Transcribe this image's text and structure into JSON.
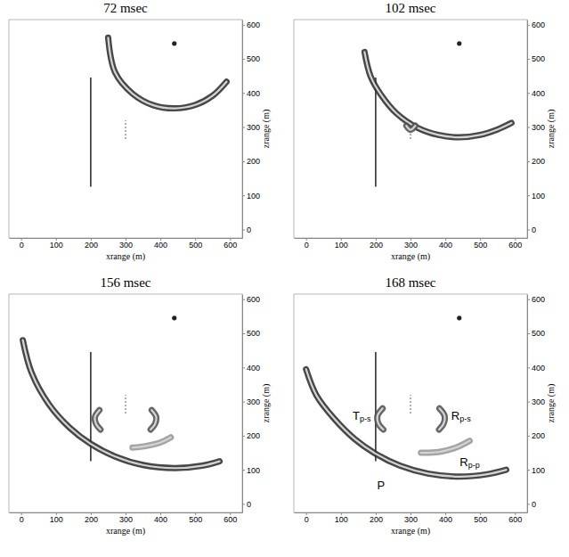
{
  "chart_data": [
    {
      "type": "wavefield",
      "title": "72 msec",
      "x_label": "xrange (m)",
      "y_label": "zrange (m)",
      "xlim": [
        -35,
        635
      ],
      "ylim": [
        -25,
        615
      ],
      "xticks": [
        0,
        100,
        200,
        300,
        400,
        500,
        600
      ],
      "yticks": [
        0,
        100,
        200,
        300,
        400,
        500,
        600
      ],
      "source": {
        "x": 440,
        "z": 545
      },
      "fractures": [
        {
          "x": [
            200,
            200
          ],
          "z": [
            125,
            445
          ],
          "line_style": "solid"
        },
        {
          "x": [
            300,
            300
          ],
          "z": [
            265,
            320
          ],
          "line_style": "dotted"
        }
      ],
      "wavefronts": [
        {
          "color": "#333333",
          "x": [
            250,
            270,
            320,
            380,
            440,
            500,
            550,
            590
          ],
          "z": [
            562,
            460,
            398,
            364,
            355,
            365,
            392,
            433
          ]
        }
      ],
      "annotations": []
    },
    {
      "type": "wavefield",
      "title": "102 msec",
      "x_label": "xrange (m)",
      "y_label": "zrange (m)",
      "xlim": [
        -35,
        635
      ],
      "ylim": [
        -25,
        615
      ],
      "xticks": [
        0,
        100,
        200,
        300,
        400,
        500,
        600
      ],
      "yticks": [
        0,
        100,
        200,
        300,
        400,
        500,
        600
      ],
      "source": {
        "x": 440,
        "z": 545
      },
      "fractures": [
        {
          "x": [
            200,
            200
          ],
          "z": [
            125,
            445
          ],
          "line_style": "solid"
        },
        {
          "x": [
            300,
            300
          ],
          "z": [
            265,
            320
          ],
          "line_style": "dotted"
        }
      ],
      "wavefronts": [
        {
          "color": "#333333",
          "x": [
            168,
            185,
            215,
            260,
            320,
            380,
            440,
            500,
            550,
            590
          ],
          "z": [
            520,
            450,
            395,
            340,
            298,
            277,
            270,
            277,
            293,
            312
          ]
        },
        {
          "color": "#555555",
          "x": [
            288,
            300,
            314
          ],
          "z": [
            304,
            292,
            304
          ]
        }
      ],
      "annotations": []
    },
    {
      "type": "wavefield",
      "title": "156 msec",
      "x_label": "xrange (m)",
      "y_label": "zrange (m)",
      "xlim": [
        -35,
        635
      ],
      "ylim": [
        -25,
        615
      ],
      "xticks": [
        0,
        100,
        200,
        300,
        400,
        500,
        600
      ],
      "yticks": [
        0,
        100,
        200,
        300,
        400,
        500,
        600
      ],
      "source": {
        "x": 440,
        "z": 545
      },
      "fractures": [
        {
          "x": [
            200,
            200
          ],
          "z": [
            125,
            445
          ],
          "line_style": "solid"
        },
        {
          "x": [
            300,
            300
          ],
          "z": [
            265,
            320
          ],
          "line_style": "dotted"
        }
      ],
      "wavefronts": [
        {
          "color": "#333333",
          "x": [
            5,
            30,
            80,
            140,
            200,
            270,
            350,
            440,
            520,
            570
          ],
          "z": [
            480,
            385,
            292,
            223,
            176,
            139,
            114,
            105,
            112,
            125
          ]
        },
        {
          "color": "#555555",
          "x": [
            225,
            212,
            215,
            228
          ],
          "z": [
            275,
            255,
            235,
            218
          ]
        },
        {
          "color": "#555555",
          "x": [
            375,
            388,
            385,
            372
          ],
          "z": [
            275,
            255,
            235,
            218
          ]
        },
        {
          "color": "#9a9a9a",
          "x": [
            320,
            360,
            400,
            430
          ],
          "z": [
            165,
            170,
            180,
            195
          ]
        }
      ],
      "annotations": []
    },
    {
      "type": "wavefield",
      "title": "168 msec",
      "x_label": "xrange (m)",
      "y_label": "zrange (m)",
      "xlim": [
        -35,
        635
      ],
      "ylim": [
        -25,
        615
      ],
      "xticks": [
        0,
        100,
        200,
        300,
        400,
        500,
        600
      ],
      "yticks": [
        0,
        100,
        200,
        300,
        400,
        500,
        600
      ],
      "source": {
        "x": 440,
        "z": 545
      },
      "fractures": [
        {
          "x": [
            200,
            200
          ],
          "z": [
            125,
            445
          ],
          "line_style": "solid"
        },
        {
          "x": [
            300,
            300
          ],
          "z": [
            265,
            320
          ],
          "line_style": "dotted"
        }
      ],
      "wavefronts": [
        {
          "color": "#333333",
          "x": [
            0,
            30,
            80,
            140,
            200,
            270,
            350,
            440,
            520,
            575
          ],
          "z": [
            395,
            318,
            251,
            190,
            147,
            112,
            89,
            80,
            87,
            100
          ]
        },
        {
          "color": "#555555",
          "x": [
            220,
            205,
            208,
            222
          ],
          "z": [
            280,
            258,
            235,
            218
          ]
        },
        {
          "color": "#555555",
          "x": [
            383,
            398,
            395,
            382
          ],
          "z": [
            280,
            258,
            235,
            218
          ]
        },
        {
          "color": "#9a9a9a",
          "x": [
            330,
            380,
            430,
            470
          ],
          "z": [
            150,
            152,
            165,
            185
          ]
        }
      ],
      "annotations": [
        {
          "text": "T",
          "subscript": "p-s",
          "x": 160,
          "z": 255
        },
        {
          "text": "R",
          "subscript": "p-s",
          "x": 445,
          "z": 255
        },
        {
          "text": "R",
          "subscript": "p-p",
          "x": 470,
          "z": 118
        },
        {
          "text": "P",
          "x": 215,
          "z": 50
        }
      ]
    }
  ]
}
